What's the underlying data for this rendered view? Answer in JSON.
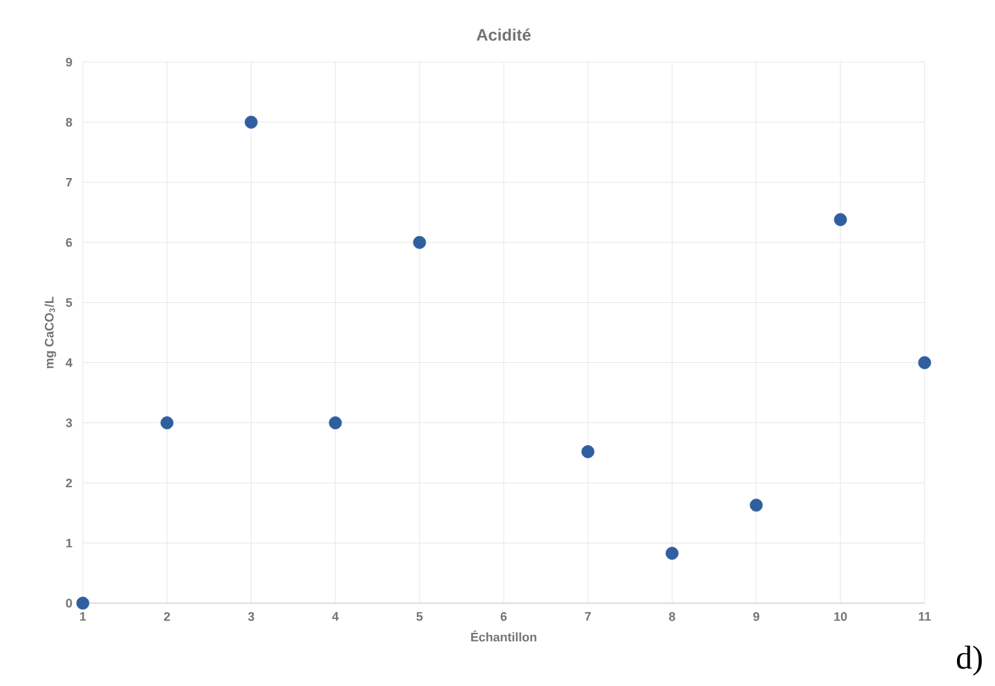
{
  "chart_data": {
    "type": "scatter",
    "title": "Acidité",
    "xlabel": "Échantillon",
    "ylabel": "mg CaCO$_{3}$/L",
    "x": [
      1,
      2,
      3,
      4,
      5,
      7,
      8,
      9,
      10,
      11
    ],
    "series": [
      {
        "color": "#2f5f9f",
        "values": [
          0,
          3,
          8,
          3,
          6,
          2.52,
          0.83,
          1.63,
          6.38,
          4
        ]
      }
    ],
    "xlim": [
      1,
      11
    ],
    "xticks": [
      1,
      2,
      3,
      4,
      5,
      6,
      7,
      8,
      9,
      10,
      11
    ],
    "ylim": [
      0,
      9
    ],
    "yticks": [
      0,
      1,
      2,
      3,
      4,
      5,
      6,
      7,
      8,
      9
    ],
    "grid": true,
    "marker": "circle",
    "annotations": [
      "d)"
    ]
  }
}
